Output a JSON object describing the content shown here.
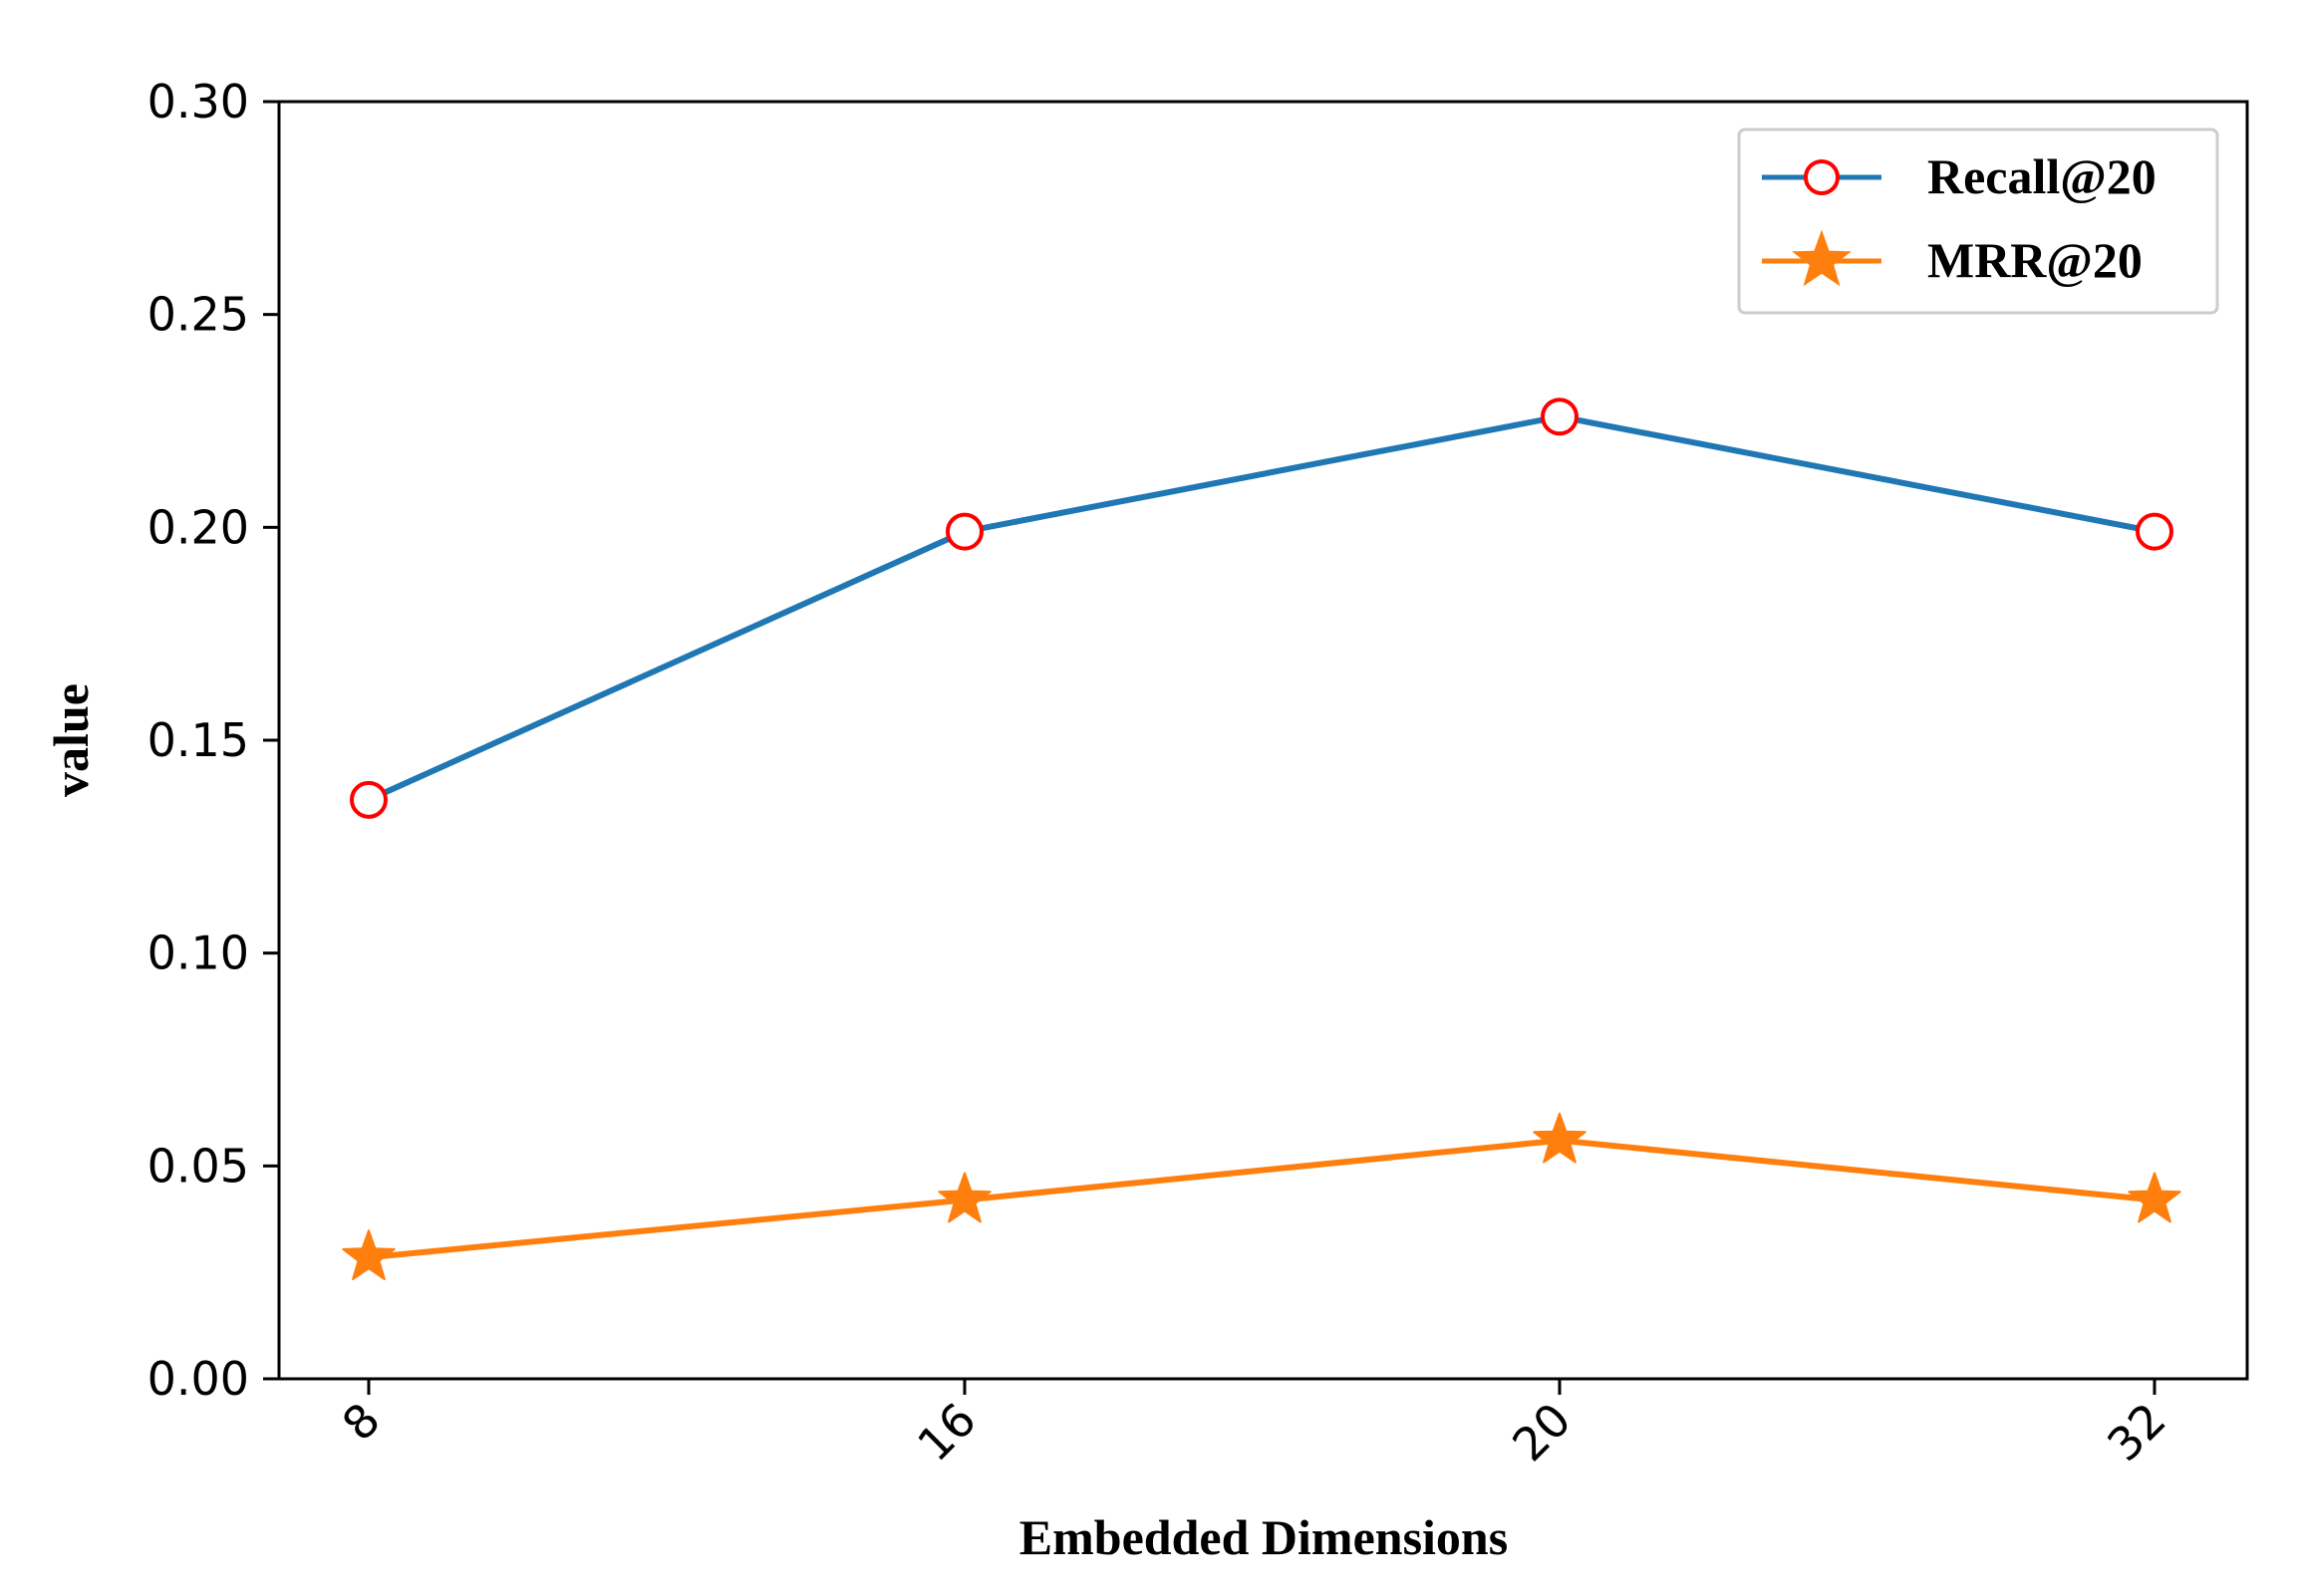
{
  "chart_data": {
    "type": "line",
    "categories": [
      "8",
      "16",
      "20",
      "32"
    ],
    "series": [
      {
        "name": "Recall@20",
        "values": [
          0.136,
          0.199,
          0.226,
          0.199
        ],
        "color": "#1f77b4",
        "marker": "open-circle",
        "marker_edge_color": "#ff0000"
      },
      {
        "name": "MRR@20",
        "values": [
          0.0285,
          0.042,
          0.056,
          0.042
        ],
        "color": "#ff7f0e",
        "marker": "star"
      }
    ],
    "xlabel": "Embedded Dimensions",
    "ylabel": "value",
    "ylim": [
      0.0,
      0.3
    ],
    "yticks": [
      "0.00",
      "0.05",
      "0.10",
      "0.15",
      "0.20",
      "0.25",
      "0.30"
    ],
    "ytick_values": [
      0.0,
      0.05,
      0.1,
      0.15,
      0.2,
      0.25,
      0.3
    ],
    "xtick_rotation": 45,
    "grid": false,
    "legend_position": "top-right"
  }
}
